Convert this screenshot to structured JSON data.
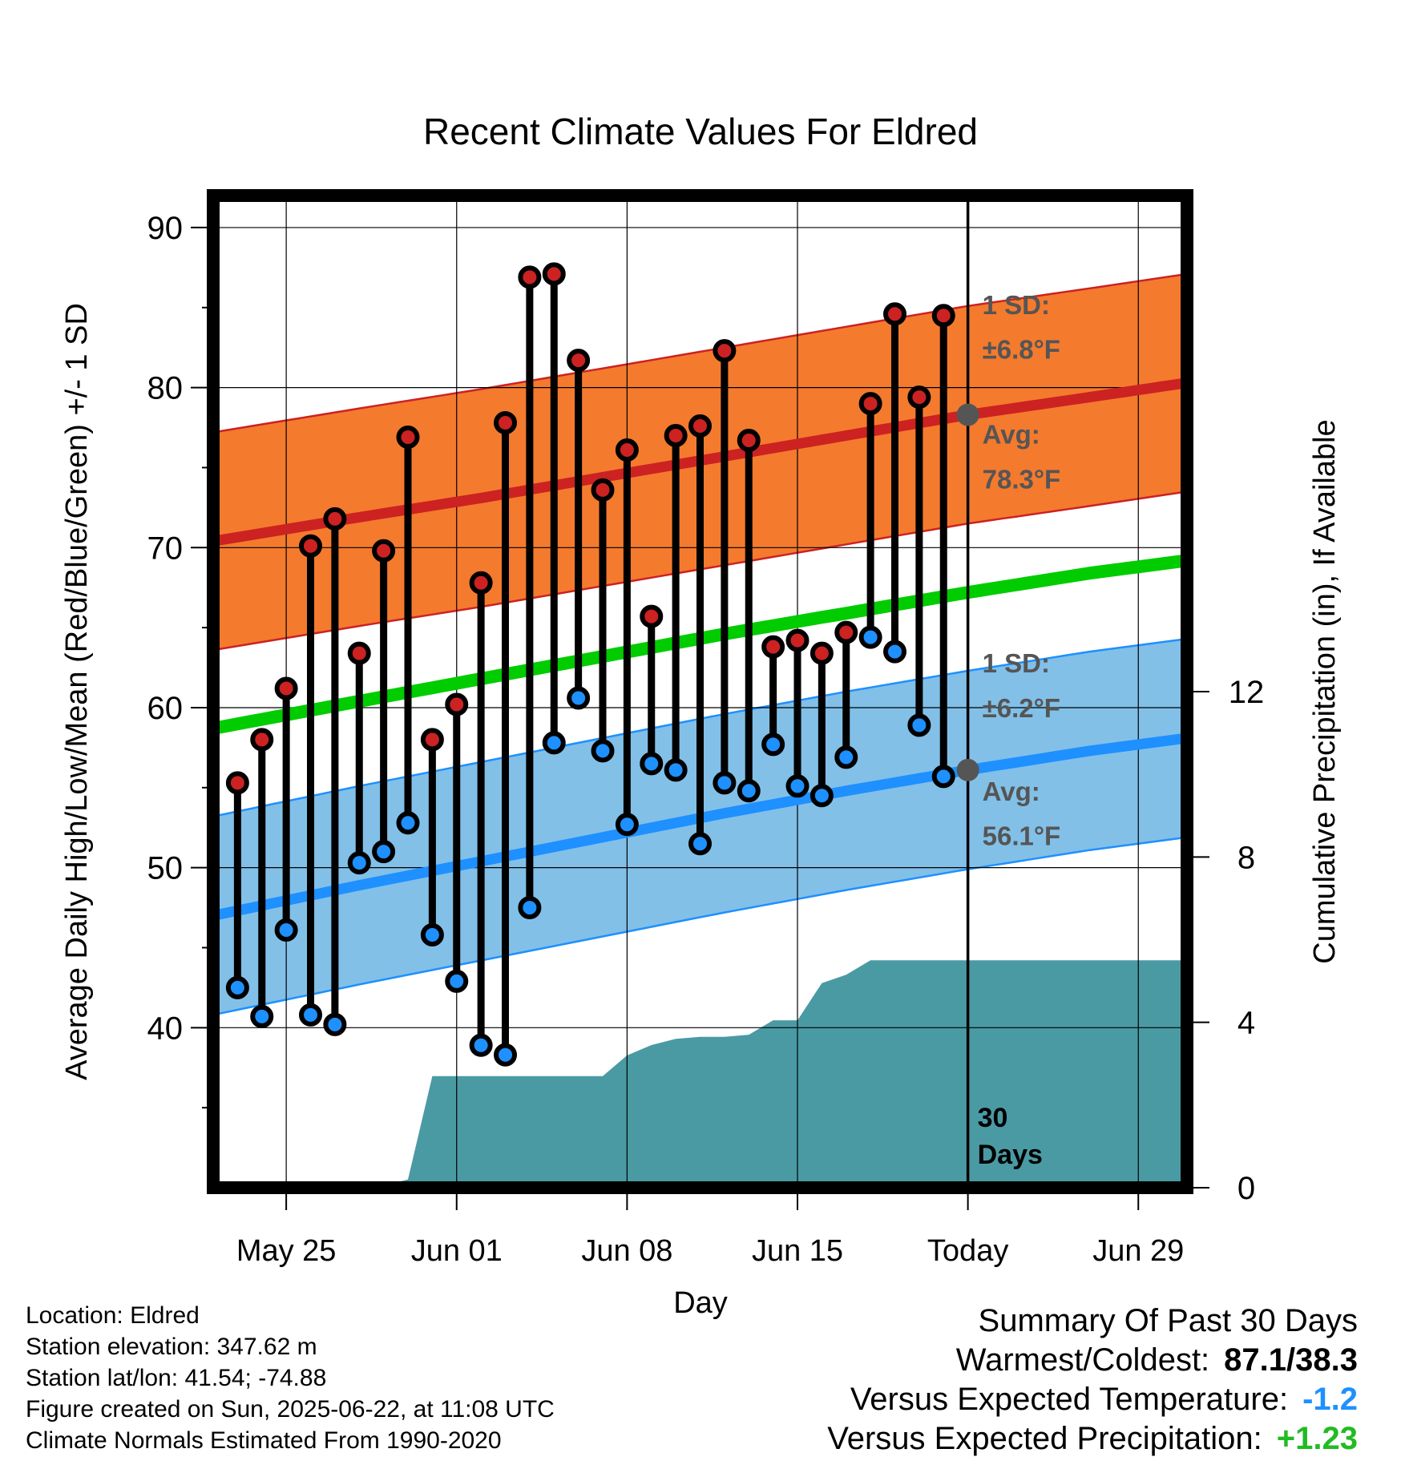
{
  "chart_data": {
    "type": "line",
    "title": "Recent Climate Values For Eldred",
    "xlabel": "Day",
    "ylabel": "Average Daily High/Low/Mean (Red/Blue/Green) +/- 1 SD",
    "y2label": "Cumulative Precipitation (in), If Available",
    "ylim": [
      30,
      92
    ],
    "y2lim": [
      0,
      24
    ],
    "x_day_range": [
      -1,
      39
    ],
    "x_ticks": [
      {
        "day": 2,
        "label": "May 25"
      },
      {
        "day": 9,
        "label": "Jun 01"
      },
      {
        "day": 16,
        "label": "Jun 08"
      },
      {
        "day": 23,
        "label": "Jun 15"
      },
      {
        "day": 30,
        "label": "Today"
      },
      {
        "day": 37,
        "label": "Jun 29"
      }
    ],
    "y_ticks": [
      40,
      50,
      60,
      70,
      80,
      90
    ],
    "y2_ticks": [
      0,
      4,
      8,
      12
    ],
    "grid": true,
    "colors": {
      "high": "#cc2222",
      "low": "#1e90ff",
      "mean": "#00cc00",
      "high_band": "#f47a2e",
      "low_band": "#82c0e8",
      "precip": "#4a9aa4",
      "marker_today": "#555555"
    },
    "daily_high": [
      55.3,
      58.0,
      61.2,
      70.1,
      71.8,
      63.4,
      69.8,
      76.9,
      58.0,
      60.2,
      67.8,
      77.8,
      86.9,
      87.1,
      81.7,
      73.6,
      76.1,
      65.7,
      77.0,
      77.6,
      82.3,
      76.7,
      63.8,
      64.2,
      63.4,
      64.7,
      79.0,
      84.6,
      79.4,
      84.5
    ],
    "daily_low": [
      42.5,
      40.7,
      46.1,
      40.8,
      40.2,
      50.3,
      51.0,
      52.8,
      45.8,
      42.9,
      38.9,
      38.3,
      47.5,
      57.8,
      60.6,
      57.3,
      52.7,
      56.5,
      56.1,
      51.5,
      55.3,
      54.8,
      57.7,
      55.1,
      54.5,
      56.9,
      64.4,
      63.5,
      58.9,
      55.7
    ],
    "normal_high": {
      "days": [
        -1,
        5,
        10,
        15,
        20,
        25,
        30,
        35,
        39
      ],
      "values": [
        70.4,
        71.9,
        73.1,
        74.4,
        75.7,
        77.0,
        78.3,
        79.4,
        80.3
      ]
    },
    "normal_low": {
      "days": [
        -1,
        5,
        10,
        15,
        20,
        25,
        30,
        35,
        39
      ],
      "values": [
        47.0,
        48.9,
        50.4,
        51.9,
        53.4,
        54.8,
        56.1,
        57.3,
        58.1
      ]
    },
    "normal_mean": {
      "days": [
        -1,
        5,
        10,
        15,
        20,
        25,
        30,
        35,
        39
      ],
      "values": [
        58.7,
        60.4,
        61.8,
        63.2,
        64.6,
        65.9,
        67.2,
        68.4,
        69.2
      ]
    },
    "high_sd": 6.8,
    "low_sd": 6.2,
    "precip": {
      "days": [
        -1,
        6,
        7,
        8,
        9,
        15,
        16,
        17,
        18,
        19,
        20,
        21,
        22,
        23,
        24,
        25,
        26,
        39
      ],
      "values": [
        0.0,
        0.05,
        0.2,
        2.7,
        2.7,
        2.7,
        3.2,
        3.45,
        3.6,
        3.65,
        3.65,
        3.7,
        4.05,
        4.05,
        4.95,
        5.15,
        5.5,
        5.5
      ]
    },
    "annotations": {
      "high_sd_label": "1 SD:",
      "high_sd_value": "±6.8°F",
      "high_avg_label": "Avg:",
      "high_avg_value": "78.3°F",
      "low_sd_label": "1 SD:",
      "low_sd_value": "±6.2°F",
      "low_avg_label": "Avg:",
      "low_avg_value": "56.1°F",
      "days_count": "30",
      "days_word": "Days"
    }
  },
  "meta": {
    "location": "Location: Eldred",
    "elevation": "Station elevation: 347.62 m",
    "latlon": "Station lat/lon: 41.54; -74.88",
    "created": "Figure created on Sun, 2025-06-22, at 11:08 UTC",
    "normals": "Climate Normals Estimated From 1990-2020"
  },
  "summary": {
    "heading": "Summary Of Past 30 Days",
    "warm_label": "Warmest/Coldest:",
    "warm_value": "87.1/38.3",
    "temp_label": "Versus Expected Temperature:",
    "temp_value": "-1.2",
    "temp_color": "#1e90ff",
    "precip_label": "Versus Expected Precipitation:",
    "precip_value": "+1.23",
    "precip_color": "#22bb22"
  }
}
